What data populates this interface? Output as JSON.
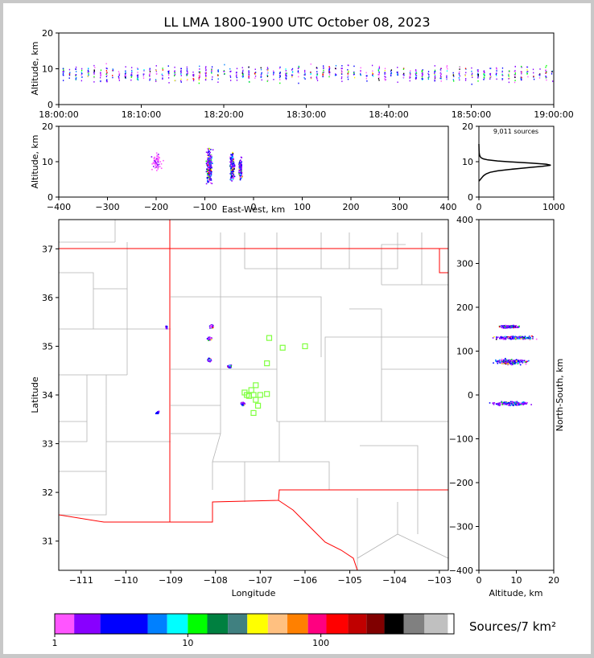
{
  "figure": {
    "title": "LL LMA 1800-1900 UTC October 08, 2023",
    "source_count_label": "9,011 sources",
    "colorbar_label": "Sources/7 km²",
    "colorbar_ticks": [
      "1",
      "10",
      "100"
    ],
    "colorbar_colors": [
      "#ff55ff",
      "#8800ff",
      "#0000ff",
      "#0080ff",
      "#00ffff",
      "#00ff00",
      "#008040",
      "#408080",
      "#ffff00",
      "#ffc080",
      "#ff8000",
      "#ff0080",
      "#ff0000",
      "#c00000",
      "#800000",
      "#000000",
      "#808080",
      "#c0c0c0",
      "#ffffff"
    ],
    "colorbar_boundaries": [
      1,
      1.4,
      2.2,
      5,
      7,
      10,
      14,
      20,
      28,
      40,
      56,
      80,
      110,
      160,
      220,
      300,
      420,
      600,
      900,
      1000
    ],
    "station_color": "#80ff40",
    "boundary_color": "#ff0000",
    "county_color": "#b4b4b4"
  },
  "chart_data": [
    {
      "id": "altitude-time",
      "type": "scatter",
      "xlabel": "",
      "ylabel": "Altitude, km",
      "ylim": [
        0,
        20
      ],
      "yticks": [
        "0",
        "10",
        "20"
      ],
      "xlim": [
        0,
        60
      ],
      "xtick_values": [
        0,
        10,
        20,
        30,
        40,
        50,
        60
      ],
      "xticks": [
        "18:00:00",
        "18:10:00",
        "18:20:00",
        "18:30:00",
        "18:40:00",
        "18:50:00",
        "19:00:00"
      ],
      "note_axis_units": "minutes after 18:00 UTC"
    },
    {
      "id": "altitude-eastwest",
      "type": "scatter",
      "xlabel": "East-West, km",
      "ylabel": "Altitude, km",
      "xlim": [
        -400,
        400
      ],
      "xticks": [
        "−400",
        "−300",
        "−200",
        "−100",
        "0",
        "100",
        "200",
        "300",
        "400"
      ],
      "xtick_values": [
        -400,
        -300,
        -200,
        -100,
        0,
        100,
        200,
        300,
        400
      ],
      "ylim": [
        0,
        20
      ],
      "yticks": [
        "0",
        "10",
        "20"
      ],
      "clusters": [
        {
          "x": -200,
          "y_center": 10,
          "x_spread": 15,
          "y_spread": 3
        },
        {
          "x": -92,
          "y_center": 8.5,
          "x_spread": 8,
          "y_spread": 5
        },
        {
          "x": -45,
          "y_center": 8.5,
          "x_spread": 6,
          "y_spread": 3.5
        },
        {
          "x": -28,
          "y_center": 8.0,
          "x_spread": 4,
          "y_spread": 3
        }
      ]
    },
    {
      "id": "altitude-histogram",
      "type": "line",
      "xlim": [
        0,
        1000
      ],
      "xticks": [
        "0",
        "1000"
      ],
      "ylim": [
        0,
        20
      ],
      "yticks": [
        "0",
        "10",
        "20"
      ],
      "x": [
        0,
        20,
        40,
        60,
        80,
        100,
        150,
        250,
        400,
        550,
        700,
        850,
        960,
        900,
        700,
        450,
        250,
        120,
        60,
        30,
        15,
        8,
        4,
        2,
        1,
        0
      ],
      "y": [
        4.5,
        5.0,
        5.5,
        6.0,
        6.3,
        6.6,
        7.0,
        7.4,
        7.8,
        8.1,
        8.4,
        8.7,
        9.0,
        9.3,
        9.6,
        9.9,
        10.2,
        10.5,
        10.8,
        11.1,
        11.5,
        12.0,
        12.5,
        13.0,
        14.0,
        15.0
      ]
    },
    {
      "id": "plan-view",
      "type": "scatter",
      "xlabel": "Longitude",
      "ylabel": "Latitude",
      "xlim": [
        -111.5,
        -102.8
      ],
      "ylim": [
        30.4,
        37.6
      ],
      "xtick_values": [
        -111,
        -110,
        -109,
        -108,
        -107,
        -106,
        -105,
        -104,
        -103
      ],
      "xticks": [
        "−111",
        "−110",
        "−109",
        "−108",
        "−107",
        "−106",
        "−105",
        "−104",
        "−103"
      ],
      "ytick_values": [
        31,
        32,
        33,
        34,
        35,
        36,
        37
      ],
      "yticks": [
        "31",
        "32",
        "33",
        "34",
        "35",
        "36",
        "37"
      ],
      "clusters": [
        {
          "lon": -108.1,
          "lat": 35.42
        },
        {
          "lon": -108.15,
          "lat": 35.17
        },
        {
          "lon": -108.15,
          "lat": 34.73
        },
        {
          "lon": -107.7,
          "lat": 34.6
        },
        {
          "lon": -107.4,
          "lat": 33.83
        },
        {
          "lon": -109.1,
          "lat": 35.4
        },
        {
          "lon": -109.3,
          "lat": 33.65
        }
      ],
      "stations": [
        [
          -106.8,
          35.17
        ],
        [
          -106.5,
          34.97
        ],
        [
          -106.0,
          35.0
        ],
        [
          -106.85,
          34.65
        ],
        [
          -107.1,
          34.2
        ],
        [
          -107.2,
          34.1
        ],
        [
          -107.15,
          34.0
        ],
        [
          -107.3,
          34.0
        ],
        [
          -107.0,
          34.0
        ],
        [
          -106.85,
          34.02
        ],
        [
          -107.1,
          33.9
        ],
        [
          -107.05,
          33.78
        ],
        [
          -107.15,
          33.63
        ],
        [
          -107.25,
          33.98
        ],
        [
          -107.35,
          34.05
        ]
      ]
    },
    {
      "id": "altitude-northsouth",
      "type": "scatter",
      "xlabel": "Altitude, km",
      "ylabel": "North-South, km",
      "xlim": [
        0,
        20
      ],
      "xticks": [
        "0",
        "10",
        "20"
      ],
      "xtick_values": [
        0,
        10,
        20
      ],
      "ylim": [
        -400,
        400
      ],
      "yticks": [
        "−400",
        "−300",
        "−200",
        "−100",
        "0",
        "100",
        "200",
        "300",
        "400"
      ],
      "ytick_values": [
        -400,
        -300,
        -200,
        -100,
        0,
        100,
        200,
        300,
        400
      ],
      "clusters": [
        {
          "y": 130,
          "x_center": 9,
          "x_spread": 5,
          "y_spread": 5
        },
        {
          "y": 155,
          "x_center": 8,
          "x_spread": 2.5,
          "y_spread": 4
        },
        {
          "y": 75,
          "x_center": 8.5,
          "x_spread": 4,
          "y_spread": 8
        },
        {
          "y": -20,
          "x_center": 8.5,
          "x_spread": 4.5,
          "y_spread": 6
        }
      ]
    }
  ]
}
